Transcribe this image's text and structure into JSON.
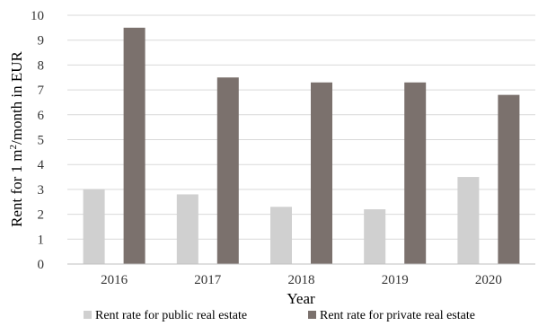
{
  "chart_data": {
    "type": "bar",
    "title": "",
    "xlabel": "Year",
    "ylabel_main": "Rent for 1 m",
    "ylabel_sup": "2",
    "ylabel_rest": "/month in EUR",
    "categories": [
      "2016",
      "2017",
      "2018",
      "2019",
      "2020"
    ],
    "ylim": [
      0,
      10
    ],
    "yticks": [
      0,
      1,
      2,
      3,
      4,
      5,
      6,
      7,
      8,
      9,
      10
    ],
    "grid": true,
    "legend_position": "bottom",
    "series": [
      {
        "name": "Rent rate for public real estate",
        "values": [
          3.0,
          2.8,
          2.3,
          2.2,
          3.5
        ],
        "color": "#d0d0d0"
      },
      {
        "name": "Rent rate for private  real estate",
        "values": [
          9.5,
          7.5,
          7.3,
          7.3,
          6.8
        ],
        "color": "#7b716d"
      }
    ]
  }
}
